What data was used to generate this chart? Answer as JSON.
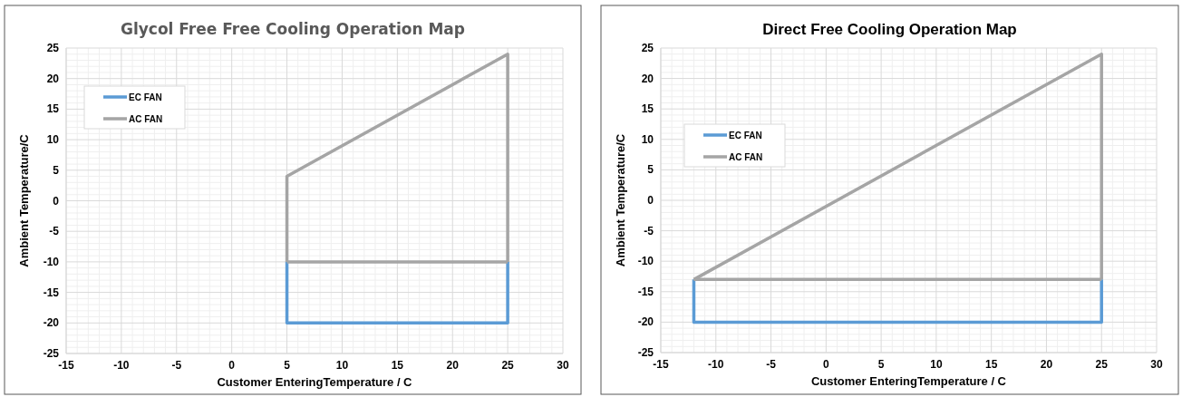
{
  "chart_data": [
    {
      "type": "line",
      "title": "Glycol Free Free Cooling Operation Map",
      "xlabel": "Customer EnteringTemperature  / C",
      "ylabel": "Ambient  Temperature/C",
      "xlim": [
        -15,
        30
      ],
      "xticks": [
        -15,
        -10,
        -5,
        0,
        5,
        10,
        15,
        20,
        25,
        30
      ],
      "ylim": [
        -25,
        25
      ],
      "yticks": [
        -25,
        -20,
        -15,
        -10,
        -5,
        0,
        5,
        10,
        15,
        20,
        25
      ],
      "grid": true,
      "legend": "top left",
      "marker": "none",
      "line_style": "solid",
      "series": [
        {
          "name": "EC FAN",
          "color": "#5b9bd5",
          "x": [
            5,
            5,
            25,
            25
          ],
          "values": [
            -10,
            -20,
            -20,
            -10
          ]
        },
        {
          "name": "AC FAN",
          "color": "#a5a5a5",
          "x": [
            5,
            5,
            25,
            25
          ],
          "values": [
            -10,
            4,
            24,
            -10
          ]
        },
        {
          "color": "#a5a5a5",
          "x": [
            5,
            25
          ],
          "values": [
            -10,
            -10
          ]
        }
      ]
    },
    {
      "type": "line",
      "title": "Direct Free Cooling Operation Map",
      "xlabel": "Customer EnteringTemperature  / C",
      "ylabel": "Ambient  Temperature/C",
      "xlim": [
        -15,
        30
      ],
      "xticks": [
        -15,
        -10,
        -5,
        0,
        5,
        10,
        15,
        20,
        25,
        30
      ],
      "ylim": [
        -25,
        25
      ],
      "yticks": [
        -25,
        -20,
        -15,
        -10,
        -5,
        0,
        5,
        10,
        15,
        20,
        25
      ],
      "grid": true,
      "legend": "top left",
      "marker": "none",
      "line_style": "solid",
      "series": [
        {
          "name": "EC FAN",
          "color": "#5b9bd5",
          "x": [
            -12,
            -12,
            25,
            25
          ],
          "values": [
            -13,
            -20,
            -20,
            -13
          ]
        },
        {
          "name": "AC FAN",
          "color": "#a5a5a5",
          "x": [
            -12,
            25,
            25
          ],
          "values": [
            -13,
            24,
            -13
          ]
        },
        {
          "color": "#a5a5a5",
          "x": [
            -12,
            25
          ],
          "values": [
            -13,
            -13
          ]
        }
      ]
    }
  ]
}
